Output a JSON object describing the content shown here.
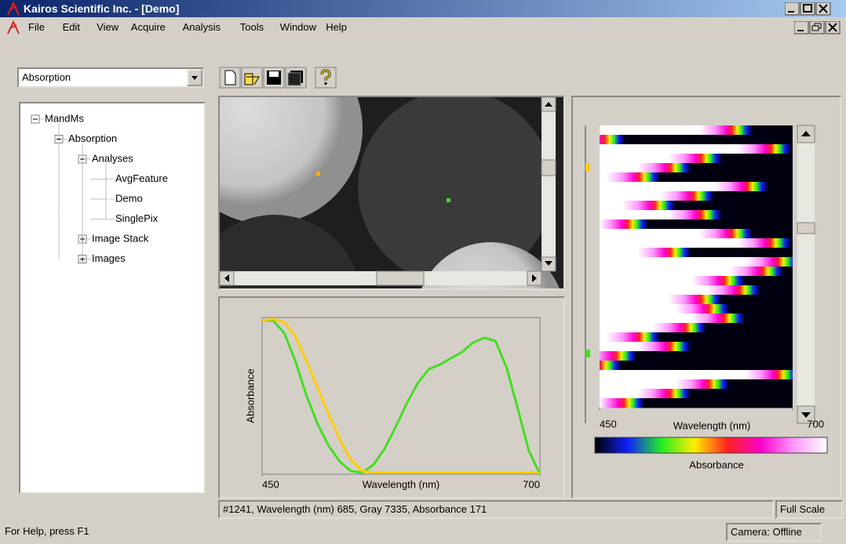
{
  "title_bar": {
    "title": "Kairos Scientific Inc. - [Demo]"
  },
  "menu": [
    "File",
    "Edit",
    "View",
    "Acquire",
    "Analysis",
    "Tools",
    "Window",
    "Help"
  ],
  "toolbar": {
    "mode": "Absorption"
  },
  "tree": {
    "label": "MandMs",
    "children": [
      {
        "label": "Absorption",
        "children": [
          {
            "label": "Analyses",
            "children": [
              {
                "label": "AvgFeature"
              },
              {
                "label": "Demo"
              },
              {
                "label": "SinglePix"
              }
            ]
          },
          {
            "label": "Image Stack"
          },
          {
            "label": "Images"
          }
        ]
      }
    ]
  },
  "chart_data": {
    "type": "line",
    "x_label": "Wavelength (nm)",
    "y_label": "Absorbance",
    "x": [
      450,
      460,
      470,
      480,
      490,
      500,
      510,
      520,
      530,
      540,
      550,
      560,
      570,
      580,
      590,
      600,
      610,
      620,
      630,
      640,
      650,
      660,
      670,
      680,
      690,
      700
    ],
    "series": [
      {
        "color": "#44dd22",
        "values": [
          0.98,
          0.98,
          0.9,
          0.72,
          0.5,
          0.32,
          0.18,
          0.08,
          0.02,
          0.01,
          0.06,
          0.16,
          0.3,
          0.45,
          0.58,
          0.67,
          0.7,
          0.74,
          0.78,
          0.84,
          0.87,
          0.85,
          0.68,
          0.42,
          0.15,
          0.0
        ]
      },
      {
        "color": "#ffcc00",
        "values": [
          0.98,
          0.99,
          0.97,
          0.88,
          0.72,
          0.55,
          0.38,
          0.22,
          0.09,
          0.02,
          0.01,
          0.01,
          0.01,
          0.01,
          0.01,
          0.01,
          0.01,
          0.01,
          0.01,
          0.01,
          0.01,
          0.01,
          0.01,
          0.01,
          0.01,
          0.01
        ]
      }
    ],
    "xlim": [
      450,
      700
    ],
    "ylim": [
      0,
      1
    ],
    "xticks": [
      450,
      700
    ]
  },
  "heatmap": {
    "x_label": "Wavelength (nm)",
    "colorbar_label": "Absorbance",
    "xlim": [
      450,
      700
    ],
    "xticks": [
      450,
      700
    ],
    "row_edges": [
      640,
      475,
      690,
      600,
      560,
      520,
      660,
      590,
      540,
      600,
      505,
      640,
      690,
      560,
      700,
      680,
      630,
      650,
      600,
      610,
      630,
      580,
      520,
      560,
      490,
      470,
      700,
      610,
      560,
      500
    ]
  },
  "status": {
    "readout": "#1241, Wavelength (nm) 685, Gray 7335, Absorbance 171",
    "scale": "Full Scale",
    "help": "For Help, press F1",
    "camera": "Camera: Offline"
  }
}
